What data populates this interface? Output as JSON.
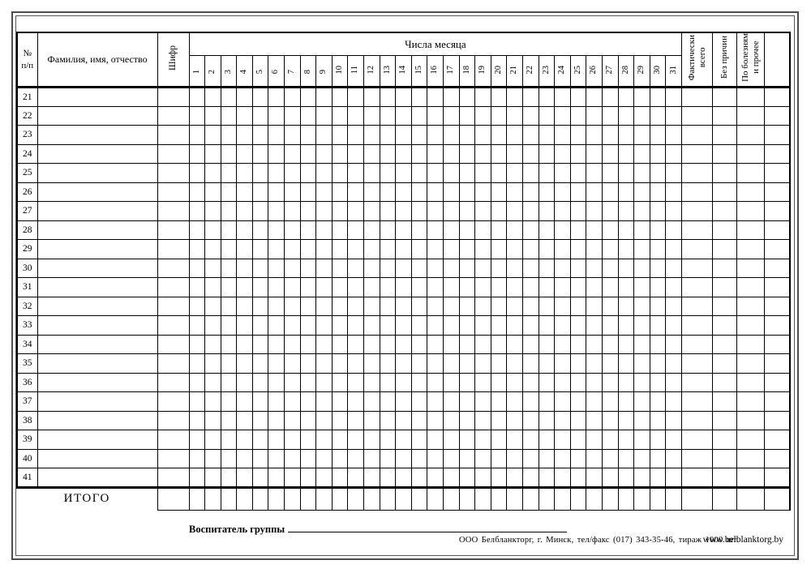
{
  "header": {
    "num_line1": "№",
    "num_line2": "п/п",
    "fullname": "Фамилия, имя, отчество",
    "code": "Шифр",
    "days_title": "Числа месяца",
    "days": [
      "1",
      "2",
      "3",
      "4",
      "5",
      "6",
      "7",
      "8",
      "9",
      "10",
      "11",
      "12",
      "13",
      "14",
      "15",
      "16",
      "17",
      "18",
      "19",
      "20",
      "21",
      "22",
      "23",
      "24",
      "25",
      "26",
      "27",
      "28",
      "29",
      "30",
      "31"
    ],
    "actual_line1": "Фактически",
    "actual_line2": "всего",
    "no_reason": "Без причин",
    "illness_line1": "По болезням",
    "illness_line2": "и прочее"
  },
  "rows": [
    "21",
    "22",
    "23",
    "24",
    "25",
    "26",
    "27",
    "28",
    "29",
    "30",
    "31",
    "32",
    "33",
    "34",
    "35",
    "36",
    "37",
    "38",
    "39",
    "40",
    "41"
  ],
  "totals_label": "ИТОГО",
  "signature_label": "Воспитатель группы",
  "footer": {
    "print_info": "ООО Белбланкторг, г. Минск, тел/факс (017) 343-35-46, тираж 1000 шт.",
    "website": "www.belblanktorg.by"
  }
}
